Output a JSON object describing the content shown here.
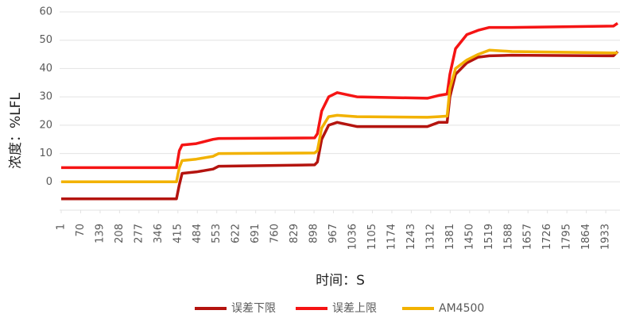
{
  "chart_data": {
    "type": "line",
    "x_label": "时间：S",
    "y_label": "浓度：%LFL",
    "x": [
      1,
      410,
      420,
      430,
      480,
      540,
      560,
      900,
      910,
      925,
      950,
      980,
      1050,
      1300,
      1340,
      1370,
      1380,
      1400,
      1440,
      1480,
      1520,
      1600,
      1960,
      1975
    ],
    "series": [
      {
        "name": "误差下限",
        "color": "#b4140f",
        "values": [
          -6,
          -6,
          -1,
          3,
          3.5,
          4.5,
          5.5,
          6,
          7,
          15,
          20,
          21,
          19.5,
          19.5,
          21,
          21,
          30,
          38,
          42,
          44,
          44.5,
          44.7,
          44.5,
          46
        ]
      },
      {
        "name": "误差上限",
        "color": "#f51414",
        "values": [
          5,
          5,
          11,
          13,
          13.5,
          15,
          15.3,
          15.5,
          17,
          25,
          30,
          31.5,
          30,
          29.5,
          30.5,
          31,
          38,
          47,
          52,
          53.5,
          54.5,
          54.5,
          55,
          56
        ]
      },
      {
        "name": "AM4500",
        "color": "#f2b200",
        "values": [
          0,
          0,
          5,
          7.5,
          8,
          9,
          10,
          10.2,
          11,
          19,
          23,
          23.5,
          23,
          22.8,
          23,
          23.2,
          33,
          40,
          43,
          45,
          46.5,
          46,
          45.5,
          45.5
        ]
      }
    ],
    "xlim": [
      1,
      1975
    ],
    "xticks": [
      1,
      70,
      139,
      208,
      277,
      346,
      415,
      484,
      553,
      622,
      691,
      760,
      829,
      898,
      967,
      1036,
      1105,
      1174,
      1243,
      1312,
      1381,
      1450,
      1519,
      1588,
      1657,
      1726,
      1795,
      1864,
      1933
    ],
    "ylim": [
      -10,
      60
    ],
    "yticks": [
      0,
      10,
      20,
      30,
      40,
      50,
      60
    ],
    "grid": true,
    "legend": "bottom"
  }
}
